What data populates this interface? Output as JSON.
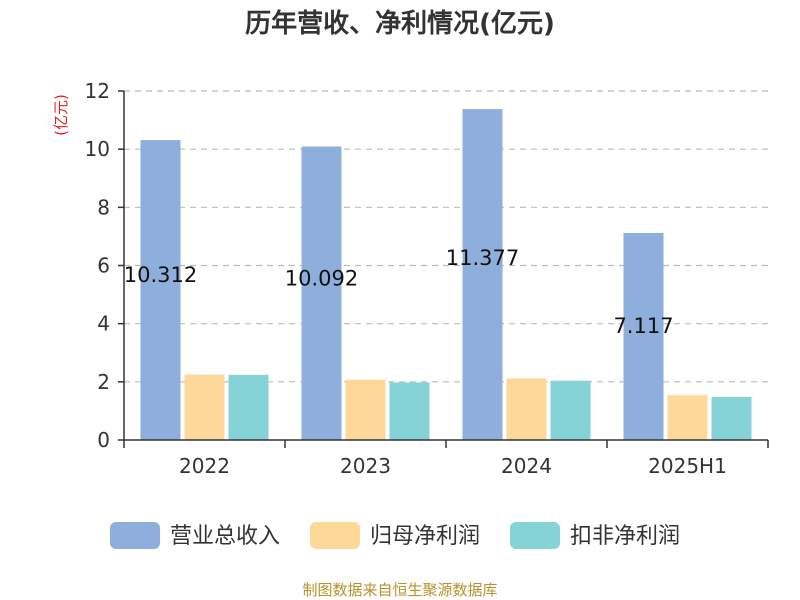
{
  "chart_data": {
    "type": "bar",
    "title": "历年营收、净利情况(亿元)",
    "ylabel": "(亿元)",
    "xlabel": "",
    "ylim": [
      0,
      12
    ],
    "yticks": [
      0,
      2,
      4,
      6,
      8,
      10,
      12
    ],
    "grid": true,
    "legend_position": "bottom",
    "categories": [
      "2022",
      "2023",
      "2024",
      "2025H1"
    ],
    "series": [
      {
        "name": "营业总收入",
        "color": "#8eaedb",
        "values": [
          10.312,
          10.092,
          11.377,
          7.117
        ],
        "labels": [
          "10.312",
          "10.092",
          "11.377",
          "7.117"
        ]
      },
      {
        "name": "归母净利润",
        "color": "#fdd898",
        "values": [
          2.25,
          2.07,
          2.12,
          1.54
        ]
      },
      {
        "name": "扣非净利润",
        "color": "#85d3d6",
        "values": [
          2.24,
          1.98,
          2.04,
          1.48
        ]
      }
    ]
  },
  "source": "制图数据来自恒生聚源数据库"
}
